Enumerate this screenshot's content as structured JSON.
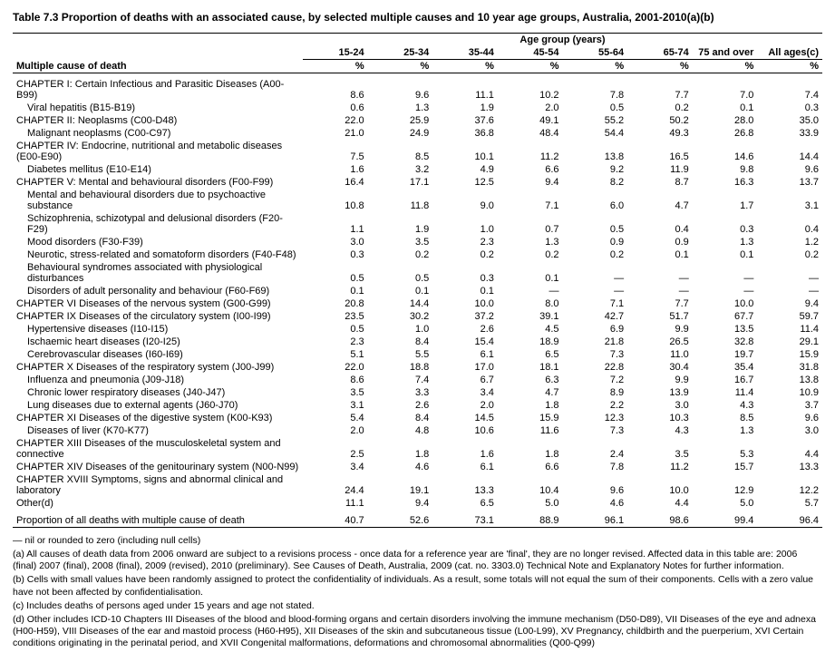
{
  "title": "Table 7.3 Proportion of deaths with an associated cause, by selected multiple causes and 10 year age groups, Australia, 2001-2010(a)(b)",
  "super_header": "Age group (years)",
  "row_header": "Multiple cause of death",
  "pct_symbol": "%",
  "columns": [
    "15-24",
    "25-34",
    "35-44",
    "45-54",
    "55-64",
    "65-74",
    "75 and over",
    "All ages(c)"
  ],
  "rows": [
    {
      "label": "CHAPTER I: Certain Infectious and Parasitic Diseases (A00-B99)",
      "indent": 0,
      "vals": [
        "8.6",
        "9.6",
        "11.1",
        "10.2",
        "7.8",
        "7.7",
        "7.0",
        "7.4"
      ]
    },
    {
      "label": "Viral hepatitis (B15-B19)",
      "indent": 1,
      "vals": [
        "0.6",
        "1.3",
        "1.9",
        "2.0",
        "0.5",
        "0.2",
        "0.1",
        "0.3"
      ]
    },
    {
      "label": "CHAPTER II: Neoplasms (C00-D48)",
      "indent": 0,
      "vals": [
        "22.0",
        "25.9",
        "37.6",
        "49.1",
        "55.2",
        "50.2",
        "28.0",
        "35.0"
      ]
    },
    {
      "label": "Malignant neoplasms (C00-C97)",
      "indent": 1,
      "vals": [
        "21.0",
        "24.9",
        "36.8",
        "48.4",
        "54.4",
        "49.3",
        "26.8",
        "33.9"
      ]
    },
    {
      "label": "CHAPTER IV: Endocrine, nutritional and metabolic diseases (E00-E90)",
      "indent": 0,
      "vals": [
        "7.5",
        "8.5",
        "10.1",
        "11.2",
        "13.8",
        "16.5",
        "14.6",
        "14.4"
      ]
    },
    {
      "label": "Diabetes mellitus (E10-E14)",
      "indent": 1,
      "vals": [
        "1.6",
        "3.2",
        "4.9",
        "6.6",
        "9.2",
        "11.9",
        "9.8",
        "9.6"
      ]
    },
    {
      "label": "CHAPTER V: Mental and behavioural disorders (F00-F99)",
      "indent": 0,
      "vals": [
        "16.4",
        "17.1",
        "12.5",
        "9.4",
        "8.2",
        "8.7",
        "16.3",
        "13.7"
      ]
    },
    {
      "label": "Mental and behavioural disorders due to psychoactive substance",
      "indent": 1,
      "vals": [
        "10.8",
        "11.8",
        "9.0",
        "7.1",
        "6.0",
        "4.7",
        "1.7",
        "3.1"
      ]
    },
    {
      "label": "Schizophrenia, schizotypal and delusional disorders (F20-F29)",
      "indent": 1,
      "vals": [
        "1.1",
        "1.9",
        "1.0",
        "0.7",
        "0.5",
        "0.4",
        "0.3",
        "0.4"
      ]
    },
    {
      "label": "Mood disorders (F30-F39)",
      "indent": 1,
      "vals": [
        "3.0",
        "3.5",
        "2.3",
        "1.3",
        "0.9",
        "0.9",
        "1.3",
        "1.2"
      ]
    },
    {
      "label": "Neurotic, stress-related and somatoform disorders (F40-F48)",
      "indent": 1,
      "vals": [
        "0.3",
        "0.2",
        "0.2",
        "0.2",
        "0.2",
        "0.1",
        "0.1",
        "0.2"
      ]
    },
    {
      "label": "Behavioural syndromes associated with physiological disturbances",
      "indent": 1,
      "vals": [
        "0.5",
        "0.5",
        "0.3",
        "0.1",
        "—",
        "—",
        "—",
        "—"
      ]
    },
    {
      "label": "Disorders of adult personality and behaviour (F60-F69)",
      "indent": 1,
      "vals": [
        "0.1",
        "0.1",
        "0.1",
        "—",
        "—",
        "—",
        "—",
        "—"
      ]
    },
    {
      "label": "CHAPTER VI Diseases of the nervous system (G00-G99)",
      "indent": 0,
      "vals": [
        "20.8",
        "14.4",
        "10.0",
        "8.0",
        "7.1",
        "7.7",
        "10.0",
        "9.4"
      ]
    },
    {
      "label": "CHAPTER IX Diseases of the circulatory system (I00-I99)",
      "indent": 0,
      "vals": [
        "23.5",
        "30.2",
        "37.2",
        "39.1",
        "42.7",
        "51.7",
        "67.7",
        "59.7"
      ]
    },
    {
      "label": "Hypertensive diseases (I10-I15)",
      "indent": 1,
      "vals": [
        "0.5",
        "1.0",
        "2.6",
        "4.5",
        "6.9",
        "9.9",
        "13.5",
        "11.4"
      ]
    },
    {
      "label": "Ischaemic heart diseases (I20-I25)",
      "indent": 1,
      "vals": [
        "2.3",
        "8.4",
        "15.4",
        "18.9",
        "21.8",
        "26.5",
        "32.8",
        "29.1"
      ]
    },
    {
      "label": "Cerebrovascular diseases (I60-I69)",
      "indent": 1,
      "vals": [
        "5.1",
        "5.5",
        "6.1",
        "6.5",
        "7.3",
        "11.0",
        "19.7",
        "15.9"
      ]
    },
    {
      "label": "CHAPTER X Diseases of the respiratory system (J00-J99)",
      "indent": 0,
      "vals": [
        "22.0",
        "18.8",
        "17.0",
        "18.1",
        "22.8",
        "30.4",
        "35.4",
        "31.8"
      ]
    },
    {
      "label": "Influenza and pneumonia (J09-J18)",
      "indent": 1,
      "vals": [
        "8.6",
        "7.4",
        "6.7",
        "6.3",
        "7.2",
        "9.9",
        "16.7",
        "13.8"
      ]
    },
    {
      "label": "Chronic lower respiratory diseases (J40-J47)",
      "indent": 1,
      "vals": [
        "3.5",
        "3.3",
        "3.4",
        "4.7",
        "8.9",
        "13.9",
        "11.4",
        "10.9"
      ]
    },
    {
      "label": "Lung diseases due to external agents (J60-J70)",
      "indent": 1,
      "vals": [
        "3.1",
        "2.6",
        "2.0",
        "1.8",
        "2.2",
        "3.0",
        "4.3",
        "3.7"
      ]
    },
    {
      "label": "CHAPTER XI Diseases of the digestive system (K00-K93)",
      "indent": 0,
      "vals": [
        "5.4",
        "8.4",
        "14.5",
        "15.9",
        "12.3",
        "10.3",
        "8.5",
        "9.6"
      ]
    },
    {
      "label": "Diseases of liver (K70-K77)",
      "indent": 1,
      "vals": [
        "2.0",
        "4.8",
        "10.6",
        "11.6",
        "7.3",
        "4.3",
        "1.3",
        "3.0"
      ]
    },
    {
      "label": "CHAPTER XIII Diseases of the musculoskeletal system and connective",
      "indent": 0,
      "vals": [
        "2.5",
        "1.8",
        "1.6",
        "1.8",
        "2.4",
        "3.5",
        "5.3",
        "4.4"
      ]
    },
    {
      "label": "CHAPTER XIV Diseases of the genitourinary system (N00-N99)",
      "indent": 0,
      "vals": [
        "3.4",
        "4.6",
        "6.1",
        "6.6",
        "7.8",
        "11.2",
        "15.7",
        "13.3"
      ]
    },
    {
      "label": "CHAPTER XVIII Symptoms, signs and abnormal clinical and laboratory",
      "indent": 0,
      "vals": [
        "24.4",
        "19.1",
        "13.3",
        "10.4",
        "9.6",
        "10.0",
        "12.9",
        "12.2"
      ]
    },
    {
      "label": "Other(d)",
      "indent": 0,
      "vals": [
        "11.1",
        "9.4",
        "6.5",
        "5.0",
        "4.6",
        "4.4",
        "5.0",
        "5.7"
      ]
    }
  ],
  "summary_row": {
    "label": "Proportion of all deaths with multiple cause of death",
    "vals": [
      "40.7",
      "52.6",
      "73.1",
      "88.9",
      "96.1",
      "98.6",
      "99.4",
      "96.4"
    ]
  },
  "footnotes": [
    "—  nil or rounded to zero (including null cells)",
    "(a) All causes of death data from 2006 onward are subject to a revisions process - once data for a reference year are 'final', they are no longer revised. Affected data in this table are: 2006 (final) 2007 (final), 2008 (final), 2009 (revised), 2010 (preliminary). See Causes of Death, Australia, 2009 (cat. no. 3303.0) Technical Note and Explanatory Notes for further information.",
    "(b) Cells with small values have been randomly assigned to protect the confidentiality of individuals. As a result, some totals will not equal the sum of their components. Cells with a zero value have not been affected by confidentialisation.",
    "(c) Includes deaths of persons aged under 15 years and age not stated.",
    "(d) Other includes ICD-10 Chapters III Diseases of the blood and blood-forming organs and certain disorders involving the immune mechanism (D50-D89), VII Diseases of the eye and adnexa (H00-H59), VIII Diseases of the ear and mastoid process (H60-H95), XII Diseases of the skin and subcutaneous tissue (L00-L99), XV Pregnancy, childbirth and the puerperium, XVI Certain conditions originating in the perinatal period, and XVII Congenital malformations, deformations and chromosomal abnormalities (Q00-Q99)"
  ]
}
